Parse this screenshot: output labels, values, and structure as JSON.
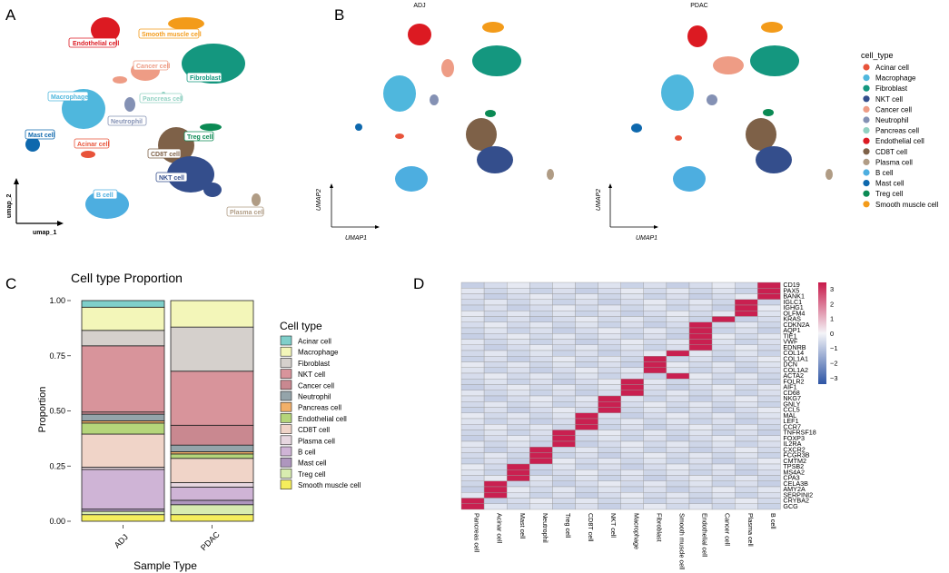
{
  "panels": {
    "a": "A",
    "b": "B",
    "c": "C",
    "d": "D"
  },
  "panel_a": {
    "xlabel": "umap_1",
    "ylabel": "umap_2",
    "labels": [
      "Endothelial cell",
      "Smooth muscle cell",
      "Cancer cell",
      "Fibroblast",
      "Macrophage",
      "Pancreas cell",
      "Neutrophil",
      "Mast cell",
      "Acinar cell",
      "Treg cell",
      "CD8T cell",
      "NKT cell",
      "B cell",
      "Plasma cell"
    ]
  },
  "panel_b": {
    "titles": [
      "ADJ",
      "PDAC"
    ],
    "xlabel": "UMAP1",
    "ylabel": "UMAP2",
    "legend_title": "cell_type",
    "legend": [
      {
        "name": "Acinar cell",
        "color": "#e8533a"
      },
      {
        "name": "Macrophage",
        "color": "#4fb7dd"
      },
      {
        "name": "Fibroblast",
        "color": "#14977f"
      },
      {
        "name": "NKT cell",
        "color": "#344e8c"
      },
      {
        "name": "Cancer cell",
        "color": "#ee9c85"
      },
      {
        "name": "Neutrophil",
        "color": "#8491b4"
      },
      {
        "name": "Pancreas cell",
        "color": "#91d1c2"
      },
      {
        "name": "Endothelial cell",
        "color": "#dc1a22"
      },
      {
        "name": "CD8T cell",
        "color": "#7e6148"
      },
      {
        "name": "Plasma cell",
        "color": "#b09c85"
      },
      {
        "name": "B cell",
        "color": "#4daee0"
      },
      {
        "name": "Mast cell",
        "color": "#0e68ad"
      },
      {
        "name": "Treg cell",
        "color": "#0b8a54"
      },
      {
        "name": "Smooth muscle cell",
        "color": "#f39b1a"
      }
    ]
  },
  "chart_data": [
    {
      "type": "bar",
      "stacked": true,
      "title": "Cell type Proportion",
      "xlabel": "Sample Type",
      "ylabel": "Proportion",
      "ylim": [
        0,
        1
      ],
      "yticks": [
        "0.00",
        "0.25",
        "0.50",
        "0.75",
        "1.00"
      ],
      "categories": [
        "ADJ",
        "PDAC"
      ],
      "legend_title": "Cell type",
      "series": [
        {
          "name": "Smooth muscle cell",
          "color": "#f5ee5c",
          "values": [
            0.03,
            0.03
          ]
        },
        {
          "name": "Treg cell",
          "color": "#d8ecb0",
          "values": [
            0.015,
            0.045
          ]
        },
        {
          "name": "Mast cell",
          "color": "#ae96be",
          "values": [
            0.01,
            0.02
          ]
        },
        {
          "name": "B cell",
          "color": "#cfb4d6",
          "values": [
            0.18,
            0.06
          ]
        },
        {
          "name": "Plasma cell",
          "color": "#e7d7e0",
          "values": [
            0.01,
            0.02
          ]
        },
        {
          "name": "CD8T cell",
          "color": "#f0d4c8",
          "values": [
            0.15,
            0.11
          ]
        },
        {
          "name": "Endothelial cell",
          "color": "#b5d57a",
          "values": [
            0.05,
            0.02
          ]
        },
        {
          "name": "Pancreas cell",
          "color": "#f2b069",
          "values": [
            0.01,
            0.01
          ]
        },
        {
          "name": "Neutrophil",
          "color": "#94a4aa",
          "values": [
            0.03,
            0.03
          ]
        },
        {
          "name": "Cancer cell",
          "color": "#c98890",
          "values": [
            0.01,
            0.09
          ]
        },
        {
          "name": "NKT cell",
          "color": "#d8949b",
          "values": [
            0.3,
            0.245
          ]
        },
        {
          "name": "Fibroblast",
          "color": "#d5d0cc",
          "values": [
            0.07,
            0.2
          ]
        },
        {
          "name": "Macrophage",
          "color": "#f3f6b9",
          "values": [
            0.105,
            0.12
          ]
        },
        {
          "name": "Acinar cell",
          "color": "#7fcfca",
          "values": [
            0.03,
            0.0
          ]
        }
      ]
    },
    {
      "type": "heatmap",
      "columns": [
        "Pancreas cell",
        "Acinar cell",
        "Mast cell",
        "Neutrophil",
        "Treg cell",
        "CD8T cell",
        "NKT cell",
        "Macrophage",
        "Fibroblast",
        "Smooth muscle cell",
        "Endothelial cell",
        "Cancer cell",
        "Plasma cell",
        "B cell"
      ],
      "rows": [
        "CD19",
        "PAX5",
        "BANK1",
        "IGLC1",
        "IGHG1",
        "OLFM4",
        "KRAS",
        "CDKN2A",
        "AQP1",
        "TIE1",
        "VWF",
        "EDNRB",
        "COL14",
        "COL1A1",
        "DCN",
        "COL1A2",
        "ACTA2",
        "FOLR2",
        "AIF1",
        "CD68",
        "NKG7",
        "GNLY",
        "CCL5",
        "MAL",
        "LEF1",
        "CCR7",
        "TNFRSF18",
        "FOXP3",
        "IL2RA",
        "CXCR2",
        "FCGR3B",
        "CMTM2",
        "TPSB2",
        "MS4A2",
        "CPA3",
        "CELA3B",
        "AMY2A",
        "SERPINI2",
        "CRYBA2",
        "GCG"
      ],
      "high": [
        [
          13,
          13,
          13
        ],
        [
          12,
          12,
          12
        ],
        [
          11
        ],
        [
          10,
          10,
          10,
          10,
          10
        ],
        [
          9,
          8,
          8,
          8,
          9
        ],
        [
          7,
          7,
          7,
          6,
          6,
          6,
          5,
          5,
          5
        ],
        [
          4,
          4,
          4
        ],
        [
          3,
          3,
          3
        ],
        [
          2,
          2,
          2
        ],
        [
          1,
          1,
          1
        ],
        [
          0,
          0
        ]
      ],
      "color_scale": {
        "min": -3,
        "max": 3,
        "ticks": [
          "3",
          "2",
          "1",
          "0",
          "−1",
          "−2",
          "−3"
        ],
        "low": "#2e55a5",
        "mid": "#f4f4f8",
        "high": "#c8194a"
      }
    }
  ]
}
